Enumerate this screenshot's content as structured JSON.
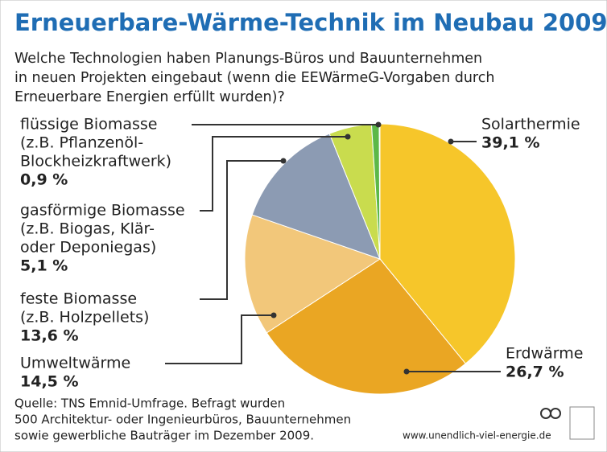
{
  "chart_data": {
    "type": "pie",
    "title": "Erneuerbare-Wärme-Technik im Neubau 2009",
    "subtitle": [
      "Welche Technologien haben Planungs-Büros und Bauunternehmen",
      "in neuen Projekten eingebaut (wenn die EEWärmeG-Vorgaben durch",
      "Erneuerbare Energien erfüllt wurden)?"
    ],
    "categories": [
      [
        "Solarthermie"
      ],
      [
        "Erdwärme"
      ],
      [
        "Umweltwärme"
      ],
      [
        "feste Biomasse",
        "(z.B. Holzpellets)"
      ],
      [
        "gasförmige Biomasse",
        "(z.B. Biogas, Klär-",
        "oder Deponiegas)"
      ],
      [
        "flüssige Biomasse",
        "(z.B. Pflanzenöl-",
        "Blockheizkraftwerk)"
      ]
    ],
    "values": [
      39.1,
      26.7,
      14.5,
      13.6,
      5.1,
      0.9
    ],
    "value_labels": [
      "39,1 %",
      "26,7 %",
      "14,5 %",
      "13,6 %",
      "5,1 %",
      "0,9 %"
    ],
    "colors": [
      "#f6c62a",
      "#eaa623",
      "#f2c77a",
      "#8c9bb3",
      "#c9dc4e",
      "#5cb848"
    ],
    "source": [
      "Quelle: TNS Emnid-Umfrage. Befragt wurden",
      "500 Architektur- oder Ingenieurbüros, Bauunternehmen",
      "sowie gewerbliche Bauträger im Dezember 2009."
    ],
    "website": "www.unendlich-viel-energie.de"
  }
}
